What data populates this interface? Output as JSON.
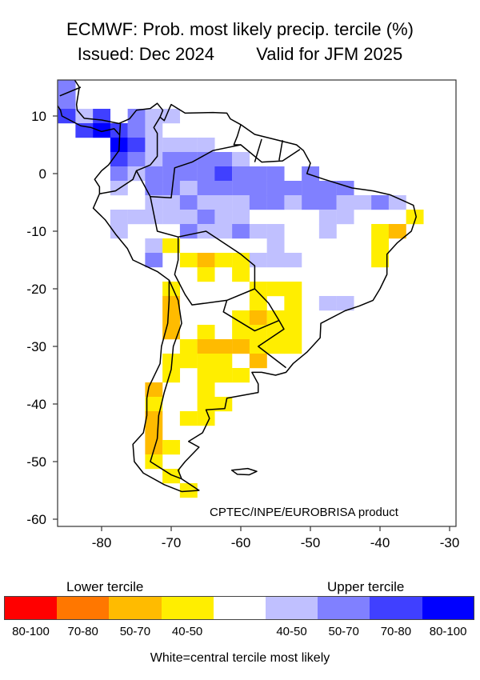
{
  "title": {
    "line1": "ECMWF: Prob. most likely precip. tercile (%)",
    "issued": "Issued: Dec 2024",
    "valid": "Valid for JFM 2025"
  },
  "credit": "CPTEC/INPE/EUROBRISA product",
  "axes": {
    "lon_ticks": [
      -80,
      -70,
      -60,
      -50,
      -40,
      -30
    ],
    "lat_ticks": [
      10,
      0,
      -10,
      -20,
      -30,
      -40,
      -50,
      -60
    ],
    "lon_range": [
      -86.3,
      -29.1
    ],
    "lat_range": [
      -61.25,
      16.25
    ]
  },
  "legend": {
    "lower_label": "Lower tercile",
    "upper_label": "Upper tercile",
    "note": "White=central tercile most likely",
    "bins": [
      {
        "code": "R",
        "label": "80-100",
        "color": "#ff0000"
      },
      {
        "code": "O",
        "label": "70-80",
        "color": "#ff7700"
      },
      {
        "code": "Y2",
        "label": "50-70",
        "color": "#ffbb00"
      },
      {
        "code": "Y1",
        "label": "40-50",
        "color": "#ffee00"
      },
      {
        "code": "W",
        "label": "",
        "color": "#ffffff"
      },
      {
        "code": "B1",
        "label": "40-50",
        "color": "#c0c0ff"
      },
      {
        "code": "B2",
        "label": "50-70",
        "color": "#8080ff"
      },
      {
        "code": "B3",
        "label": "70-80",
        "color": "#4040ff"
      },
      {
        "code": "B4",
        "label": "80-100",
        "color": "#0000ff"
      }
    ]
  },
  "grid_step_deg": 2.5,
  "cells": [
    [
      15,
      -85,
      -85,
      "B2"
    ],
    [
      12.5,
      -85,
      -85,
      "B2"
    ],
    [
      10,
      -85,
      -85,
      "B3"
    ],
    [
      10,
      -82.5,
      -82.5,
      "B1"
    ],
    [
      10,
      -80,
      -80,
      "B3"
    ],
    [
      10,
      -75,
      -75,
      "B2"
    ],
    [
      10,
      -72.5,
      -70,
      "B1"
    ],
    [
      7.5,
      -82.5,
      -82.5,
      "B3"
    ],
    [
      7.5,
      -80,
      -80,
      "B4"
    ],
    [
      7.5,
      -77.5,
      -77.5,
      "B3"
    ],
    [
      7.5,
      -75,
      -75,
      "B2"
    ],
    [
      7.5,
      -72.5,
      -72.5,
      "B1"
    ],
    [
      5,
      -77.5,
      -77.5,
      "B4"
    ],
    [
      5,
      -75,
      -75,
      "B3"
    ],
    [
      5,
      -72.5,
      -65,
      "B1"
    ],
    [
      2.5,
      -77.5,
      -77.5,
      "B3"
    ],
    [
      2.5,
      -75,
      -75,
      "B2"
    ],
    [
      2.5,
      -72.5,
      -72.5,
      "B1"
    ],
    [
      2.5,
      -70,
      -62.5,
      "B2"
    ],
    [
      2.5,
      -60,
      -60,
      "B1"
    ],
    [
      0,
      -77.5,
      -77.5,
      "B2"
    ],
    [
      0,
      -75,
      -75,
      "B1"
    ],
    [
      0,
      -72.5,
      -65,
      "B2"
    ],
    [
      0,
      -62.5,
      -62.5,
      "B3"
    ],
    [
      0,
      -60,
      -55,
      "B2"
    ],
    [
      0,
      -50,
      -50,
      "B2"
    ],
    [
      -2.5,
      -77.5,
      -77.5,
      "B1"
    ],
    [
      -2.5,
      -72.5,
      -70,
      "B2"
    ],
    [
      -2.5,
      -67.5,
      -67.5,
      "B1"
    ],
    [
      -2.5,
      -65,
      -45,
      "B2"
    ],
    [
      -5,
      -72.5,
      -70,
      "B1"
    ],
    [
      -5,
      -67.5,
      -67.5,
      "B2"
    ],
    [
      -5,
      -65,
      -60,
      "B1"
    ],
    [
      -5,
      -57.5,
      -55,
      "B2"
    ],
    [
      -5,
      -52.5,
      -52.5,
      "B1"
    ],
    [
      -5,
      -50,
      -47.5,
      "B2"
    ],
    [
      -5,
      -45,
      -42.5,
      "B1"
    ],
    [
      -5,
      -40,
      -40,
      "B2"
    ],
    [
      -5,
      -37.5,
      -37.5,
      "B1"
    ],
    [
      -7.5,
      -77.5,
      -67.5,
      "B1"
    ],
    [
      -7.5,
      -65,
      -65,
      "B2"
    ],
    [
      -7.5,
      -62.5,
      -60,
      "B1"
    ],
    [
      -7.5,
      -47.5,
      -45,
      "B1"
    ],
    [
      -7.5,
      -35,
      -35,
      "Y1"
    ],
    [
      -10,
      -77.5,
      -77.5,
      "B1"
    ],
    [
      -10,
      -67.5,
      -67.5,
      "B2"
    ],
    [
      -10,
      -65,
      -62.5,
      "B1"
    ],
    [
      -10,
      -60,
      -60,
      "B2"
    ],
    [
      -10,
      -57.5,
      -55,
      "B1"
    ],
    [
      -10,
      -47.5,
      -47.5,
      "B1"
    ],
    [
      -10,
      -40,
      -40,
      "Y1"
    ],
    [
      -10,
      -37.5,
      -37.5,
      "Y2"
    ],
    [
      -12.5,
      -72.5,
      -72.5,
      "B1"
    ],
    [
      -12.5,
      -70,
      -70,
      "Y1"
    ],
    [
      -12.5,
      -55,
      -55,
      "B1"
    ],
    [
      -12.5,
      -40,
      -40,
      "Y1"
    ],
    [
      -15,
      -72.5,
      -72.5,
      "B2"
    ],
    [
      -15,
      -67.5,
      -67.5,
      "Y1"
    ],
    [
      -15,
      -65,
      -65,
      "Y2"
    ],
    [
      -15,
      -62.5,
      -60,
      "Y1"
    ],
    [
      -15,
      -57.5,
      -52.5,
      "B1"
    ],
    [
      -15,
      -40,
      -40,
      "Y1"
    ],
    [
      -17.5,
      -65,
      -65,
      "Y1"
    ],
    [
      -17.5,
      -60,
      -60,
      "Y1"
    ],
    [
      -20,
      -70,
      -70,
      "Y1"
    ],
    [
      -20,
      -57.5,
      -52.5,
      "Y1"
    ],
    [
      -22.5,
      -70,
      -70,
      "Y2"
    ],
    [
      -22.5,
      -57.5,
      -57.5,
      "Y1"
    ],
    [
      -22.5,
      -52.5,
      -52.5,
      "Y1"
    ],
    [
      -22.5,
      -47.5,
      -45,
      "B1"
    ],
    [
      -25,
      -70,
      -70,
      "Y2"
    ],
    [
      -25,
      -60,
      -60,
      "Y1"
    ],
    [
      -25,
      -57.5,
      -57.5,
      "Y2"
    ],
    [
      -25,
      -55,
      -52.5,
      "Y1"
    ],
    [
      -27.5,
      -70,
      -70,
      "Y2"
    ],
    [
      -27.5,
      -65,
      -65,
      "Y1"
    ],
    [
      -27.5,
      -60,
      -52.5,
      "Y1"
    ],
    [
      -30,
      -67.5,
      -67.5,
      "Y1"
    ],
    [
      -30,
      -65,
      -60,
      "Y2"
    ],
    [
      -30,
      -57.5,
      -52.5,
      "Y1"
    ],
    [
      -32.5,
      -70,
      -62.5,
      "Y1"
    ],
    [
      -32.5,
      -57.5,
      -57.5,
      "Y2"
    ],
    [
      -35,
      -70,
      -70,
      "Y1"
    ],
    [
      -35,
      -65,
      -60,
      "Y1"
    ],
    [
      -37.5,
      -72.5,
      -72.5,
      "Y2"
    ],
    [
      -37.5,
      -65,
      -65,
      "Y1"
    ],
    [
      -40,
      -72.5,
      -72.5,
      "Y1"
    ],
    [
      -40,
      -65,
      -62.5,
      "Y1"
    ],
    [
      -42.5,
      -72.5,
      -72.5,
      "Y2"
    ],
    [
      -42.5,
      -67.5,
      -65,
      "Y1"
    ],
    [
      -45,
      -72.5,
      -72.5,
      "Y2"
    ],
    [
      -47.5,
      -72.5,
      -72.5,
      "Y2"
    ],
    [
      -47.5,
      -70,
      -70,
      "Y1"
    ],
    [
      -50,
      -72.5,
      -72.5,
      "Y1"
    ],
    [
      -52.5,
      -70,
      -70,
      "Y1"
    ],
    [
      -55,
      -67.5,
      -67.5,
      "Y1"
    ]
  ]
}
